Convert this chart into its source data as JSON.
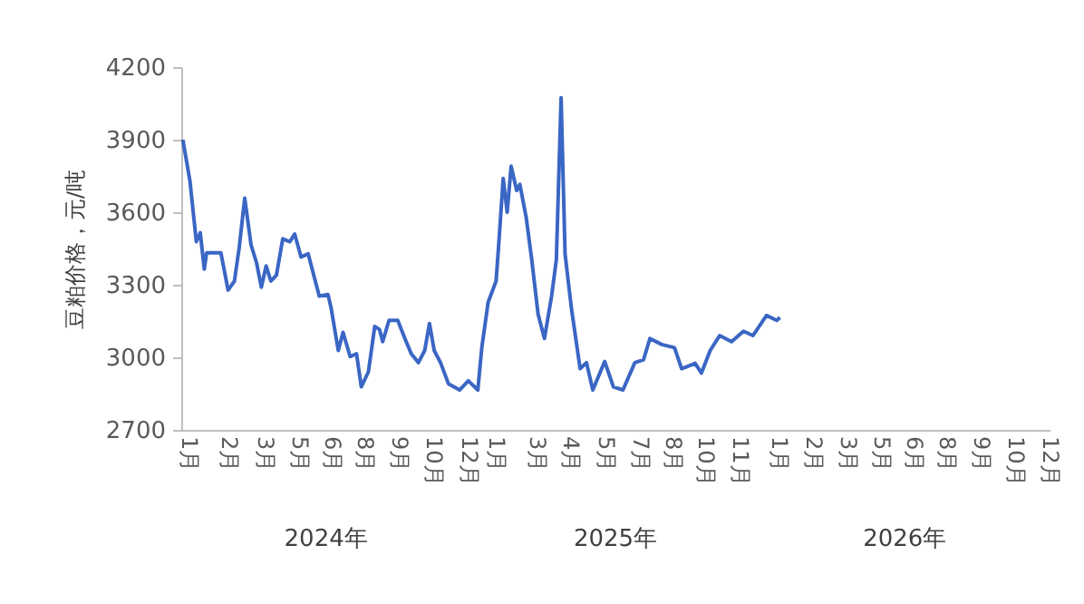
{
  "chart_data": {
    "type": "line",
    "ylabel": "豆粕价格，元/吨",
    "x": [
      "2024-01-03",
      "2024-01-12",
      "2024-01-20",
      "2024-01-25",
      "2024-01-30",
      "2024-02-02",
      "2024-02-20",
      "2024-02-29",
      "2024-03-08",
      "2024-03-14",
      "2024-03-21",
      "2024-03-29",
      "2024-04-05",
      "2024-04-11",
      "2024-04-17",
      "2024-04-23",
      "2024-04-30",
      "2024-05-08",
      "2024-05-17",
      "2024-05-23",
      "2024-05-31",
      "2024-06-09",
      "2024-06-17",
      "2024-06-23",
      "2024-07-04",
      "2024-07-08",
      "2024-07-17",
      "2024-07-23",
      "2024-08-01",
      "2024-08-09",
      "2024-08-15",
      "2024-08-24",
      "2024-09-01",
      "2024-09-07",
      "2024-09-11",
      "2024-09-19",
      "2024-09-30",
      "2024-10-09",
      "2024-10-17",
      "2024-10-26",
      "2024-11-03",
      "2024-11-09",
      "2024-11-15",
      "2024-11-23",
      "2024-12-03",
      "2024-12-17",
      "2024-12-28",
      "2025-01-09",
      "2025-01-14",
      "2025-01-22",
      "2025-02-01",
      "2025-02-04",
      "2025-02-10",
      "2025-02-15",
      "2025-02-20",
      "2025-02-27",
      "2025-03-03",
      "2025-03-11",
      "2025-03-18",
      "2025-03-26",
      "2025-04-03",
      "2025-04-12",
      "2025-04-18",
      "2025-04-24",
      "2025-04-29",
      "2025-05-07",
      "2025-05-18",
      "2025-05-26",
      "2025-06-03",
      "2025-06-18",
      "2025-06-29",
      "2025-07-11",
      "2025-07-26",
      "2025-08-06",
      "2025-08-14",
      "2025-08-29",
      "2025-09-14",
      "2025-09-23",
      "2025-10-10",
      "2025-10-18",
      "2025-10-29",
      "2025-11-10",
      "2025-11-25",
      "2025-12-10",
      "2025-12-22",
      "2026-01-08",
      "2026-01-21",
      "2026-01-25"
    ],
    "series": [
      {
        "color": "#3a66c4",
        "values": [
          3900,
          3728,
          3478,
          3515,
          3365,
          3432,
          3432,
          3278,
          3315,
          3452,
          3658,
          3465,
          3390,
          3290,
          3378,
          3315,
          3340,
          3490,
          3478,
          3510,
          3415,
          3428,
          3328,
          3253,
          3260,
          3203,
          3028,
          3103,
          3003,
          3015,
          2878,
          2940,
          3128,
          3115,
          3065,
          3153,
          3153,
          3078,
          3015,
          2978,
          3028,
          3140,
          3028,
          2978,
          2890,
          2865,
          2903,
          2865,
          3040,
          3228,
          3315,
          3450,
          3740,
          3600,
          3790,
          3690,
          3715,
          3578,
          3403,
          3178,
          3078,
          3253,
          3403,
          4073,
          3428,
          3203,
          2953,
          2978,
          2865,
          2983,
          2878,
          2865,
          2978,
          2990,
          3078,
          3053,
          3040,
          2953,
          2975,
          2935,
          3028,
          3090,
          3065,
          3108,
          3090,
          3173,
          3153,
          3165
        ]
      }
    ],
    "xlim": [
      "2024-01-01",
      "2026-12-31"
    ],
    "xticks": [
      {
        "value": "2024-01-03",
        "label": "1月"
      },
      {
        "value": "2024-02-23",
        "label": "2月"
      },
      {
        "value": "2024-04-08",
        "label": "3月"
      },
      {
        "value": "2024-05-22",
        "label": "5月"
      },
      {
        "value": "2024-07-02",
        "label": "6月"
      },
      {
        "value": "2024-08-12",
        "label": "8月"
      },
      {
        "value": "2024-09-25",
        "label": "9月"
      },
      {
        "value": "2024-11-07",
        "label": "10月"
      },
      {
        "value": "2024-12-21",
        "label": "12月"
      },
      {
        "value": "2025-01-25",
        "label": "1月"
      },
      {
        "value": "2025-03-17",
        "label": "3月"
      },
      {
        "value": "2025-04-29",
        "label": "4月"
      },
      {
        "value": "2025-06-12",
        "label": "5月"
      },
      {
        "value": "2025-07-25",
        "label": "7月"
      },
      {
        "value": "2025-09-05",
        "label": "8月"
      },
      {
        "value": "2025-10-16",
        "label": "10月"
      },
      {
        "value": "2025-11-28",
        "label": "11月"
      },
      {
        "value": "2026-01-16",
        "label": "1月"
      },
      {
        "value": "2026-03-01",
        "label": "2月"
      },
      {
        "value": "2026-04-13",
        "label": "3月"
      },
      {
        "value": "2026-05-25",
        "label": "5月"
      },
      {
        "value": "2026-07-06",
        "label": "6月"
      },
      {
        "value": "2026-08-16",
        "label": "8月"
      },
      {
        "value": "2026-09-28",
        "label": "9月"
      },
      {
        "value": "2026-11-11",
        "label": "10月"
      },
      {
        "value": "2026-12-24",
        "label": "12月"
      }
    ],
    "ylim": [
      2700,
      4200
    ],
    "yticks": [
      2700,
      3000,
      3300,
      3600,
      3900,
      4200
    ],
    "grid": false,
    "legend": false,
    "marker": "none",
    "line_style": "solid",
    "annotations": [
      "2024年",
      "2025年",
      "2026年"
    ]
  }
}
